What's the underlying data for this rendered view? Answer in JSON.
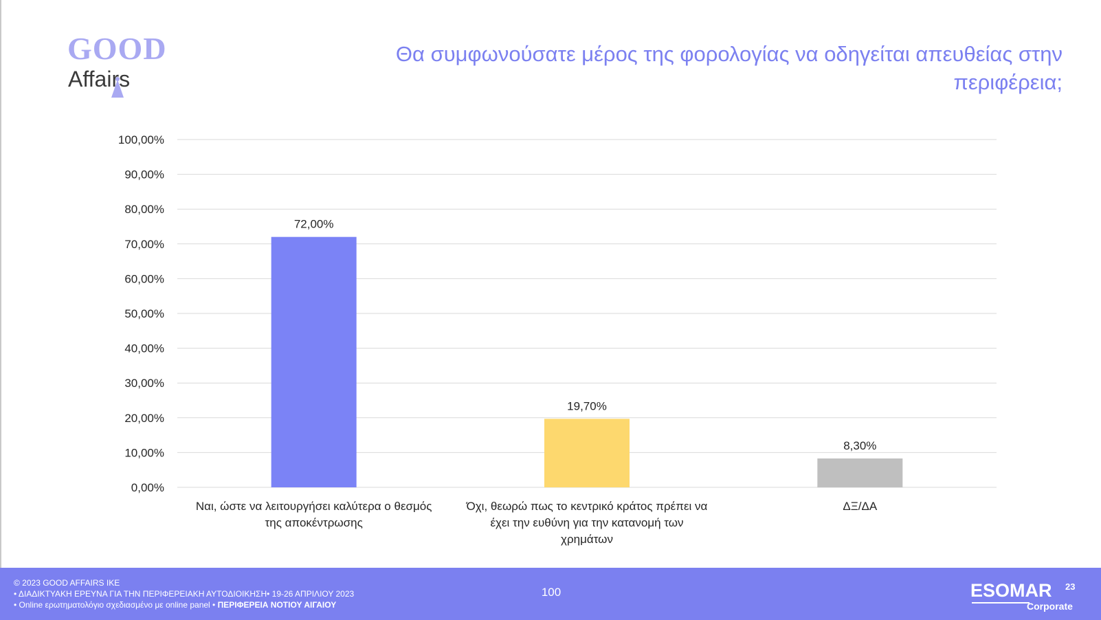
{
  "logo": {
    "word_top": "GOOD",
    "word_bottom": "Affairs"
  },
  "title": "Θα συμφωνούσατε μέρος της φορολογίας να οδηγείται απευθείας στην περιφέρεια;",
  "chart_data": {
    "type": "bar",
    "categories": [
      "Ναι, ώστε να λειτουργήσει καλύτερα ο θεσμός της αποκέντρωσης",
      "Όχι, θεωρώ πως το κεντρικό κράτος πρέπει να έχει την ευθύνη για την κατανομή των χρημάτων",
      "ΔΞ/ΔΑ"
    ],
    "category_lines": [
      [
        "Ναι, ώστε να λειτουργήσει καλύτερα ο θεσμός",
        "της αποκέντρωσης"
      ],
      [
        "Όχι, θεωρώ πως το κεντρικό κράτος πρέπει να",
        "έχει την ευθύνη για την κατανομή των",
        "χρημάτων"
      ],
      [
        "ΔΞ/ΔΑ"
      ]
    ],
    "values": [
      72.0,
      19.7,
      8.3
    ],
    "value_labels": [
      "72,00%",
      "19,70%",
      "8,30%"
    ],
    "bar_colors": [
      "#7b83f6",
      "#fdd86e",
      "#bfbfbf"
    ],
    "ylim": [
      0,
      100
    ],
    "yticks": [
      0,
      10,
      20,
      30,
      40,
      50,
      60,
      70,
      80,
      90,
      100
    ],
    "ytick_labels": [
      "0,00%",
      "10,00%",
      "20,00%",
      "30,00%",
      "40,00%",
      "50,00%",
      "60,00%",
      "70,00%",
      "80,00%",
      "90,00%",
      "100,00%"
    ],
    "grid": true,
    "legend": "none"
  },
  "footer": {
    "line1": "© 2023 GOOD AFFAIRS IKE",
    "line2": "• ΔΙΑΔΙΚΤΥΑΚΗ ΕΡΕΥΝΑ  ΓΙΑ ΤΗΝ ΠΕΡΙΦΕΡΕΙΑΚΗ ΑΥΤΟΔΙΟΙΚΗΣΗ• 19-26 ΑΠΡΙΛΙΟΥ 2023",
    "line3_plain": "• Online ερωτηματολόγιο σχεδιασμένο με online panel  •",
    "line3_bold": "ΠΕΡΙΦΕΡΕΙΑ ΝΟΤΙΟΥ ΑΙΓΑΙΟΥ",
    "page_number": "100",
    "esomar_word": "ESOMAR",
    "esomar_sup": "23",
    "esomar_sub": "Corporate"
  },
  "colors": {
    "accent": "#7b80f0",
    "logo_light": "#a9a9f2",
    "grid": "#d9d9d9"
  }
}
